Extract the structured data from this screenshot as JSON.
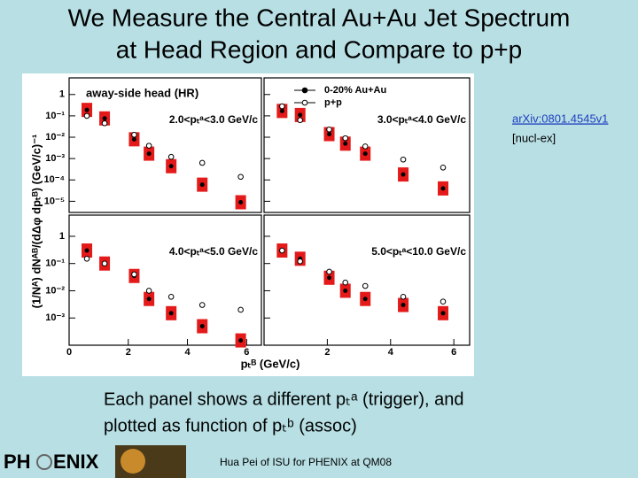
{
  "slide": {
    "title_lines": [
      "We Measure the Central Au+Au Jet Spectrum",
      "at Head Region and Compare to p+p"
    ],
    "link": "arXiv:0801.4545v1",
    "link_note": "[nucl-ex]",
    "caption_lines": [
      "Each panel shows a different pₜᵃ (trigger), and",
      "plotted as function of pₜᵇ (assoc)"
    ],
    "footer": "Hua Pei of ISU for PHENIX at QM08",
    "logo_left": "PH",
    "logo_right": "ENIX"
  },
  "figure": {
    "annotation": "away-side head (HR)",
    "series_names": [
      "0-20% Au+Au",
      "p+p"
    ],
    "y_label": "(1/Nᴬ) dNᴬᴮ/(dΔφ dpₜᴮ) (GeV/c)⁻¹",
    "x_label": "pₜᴮ (GeV/c)",
    "columns": [
      {
        "xlim": [
          0,
          6.5
        ],
        "xticks": [
          0,
          2,
          4,
          6
        ]
      },
      {
        "xlim": [
          0,
          6.5
        ],
        "xticks": [
          2,
          4,
          6
        ]
      }
    ],
    "rows": [
      {
        "ylim": [
          3e-06,
          6
        ],
        "yticks": [
          1,
          {
            "value": 0.1,
            "label": "10⁻¹"
          },
          {
            "value": 0.01,
            "label": "10⁻²"
          },
          {
            "value": 0.001,
            "label": "10⁻³"
          },
          {
            "value": 0.0001,
            "label": "10⁻⁴"
          },
          {
            "value": 1e-05,
            "label": "10⁻⁵"
          }
        ],
        "panels": [
          {
            "label": "2.0<pₜᵃ<3.0 GeV/c",
            "x": [
              0.6,
              1.2,
              2.2,
              2.7,
              3.45,
              4.5,
              5.8
            ],
            "series": [
              [
                0.19,
                0.076,
                0.008,
                0.0017,
                0.00044,
                6e-05,
                9e-06
              ],
              [
                0.1,
                0.045,
                0.013,
                0.004,
                0.0012,
                0.00063,
                0.00014
              ]
            ]
          },
          {
            "label": "3.0<pₜᵃ<4.0 GeV/c",
            "x": [
              0.57,
              1.14,
              2.06,
              2.57,
              3.2,
              4.4,
              5.66
            ],
            "series": [
              [
                0.17,
                0.11,
                0.014,
                0.005,
                0.0017,
                0.00018,
                4e-05
              ],
              [
                0.28,
                0.063,
                0.023,
                0.009,
                0.0037,
                0.0009,
                0.00038
              ]
            ]
          }
        ]
      },
      {
        "ylim": [
          0.0001,
          6
        ],
        "yticks": [
          1,
          {
            "value": 0.1,
            "label": "10⁻¹"
          },
          {
            "value": 0.01,
            "label": "10⁻²"
          },
          {
            "value": 0.001,
            "label": "10⁻³"
          }
        ],
        "panels": [
          {
            "label": "4.0<pₜᵃ<5.0 GeV/c",
            "x": [
              0.6,
              1.2,
              2.2,
              2.7,
              3.45,
              4.5,
              5.8
            ],
            "series": [
              [
                0.3,
                0.1,
                0.035,
                0.005,
                0.0015,
                0.0005,
                0.00015
              ],
              [
                0.15,
                0.1,
                0.04,
                0.01,
                0.006,
                0.003,
                0.002
              ]
            ]
          },
          {
            "label": "5.0<pₜᵃ<10.0 GeV/c",
            "x": [
              0.57,
              1.14,
              2.06,
              2.57,
              3.2,
              4.4,
              5.66
            ],
            "series": [
              [
                0.3,
                0.15,
                0.03,
                0.01,
                0.005,
                0.003,
                0.0015
              ],
              [
                0.3,
                0.12,
                0.05,
                0.02,
                0.015,
                0.006,
                0.004
              ]
            ]
          }
        ]
      }
    ]
  }
}
